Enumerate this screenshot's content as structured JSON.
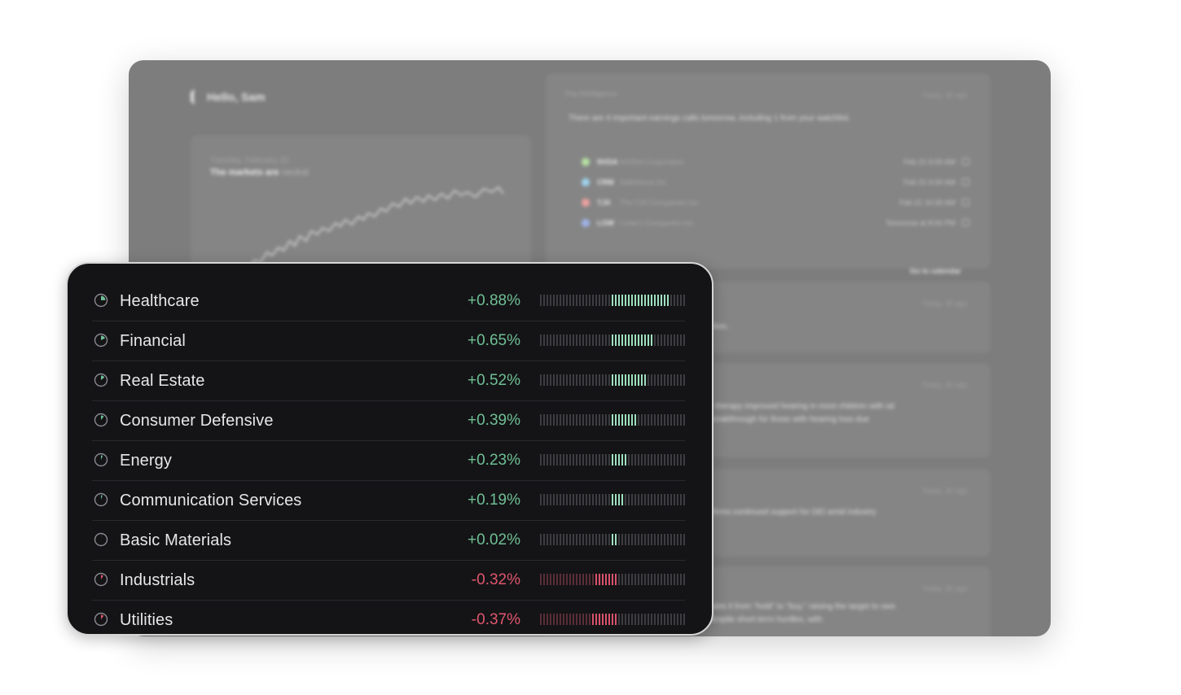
{
  "background_app": {
    "greeting": "Hello, Sam",
    "market_card": {
      "date": "Tuesday, February 20",
      "headline_prefix": "The markets are",
      "headline_state": "neutral"
    },
    "earnings_panel": {
      "pill": "Fey Intelligence",
      "timestamp": "Today, 30 ago",
      "summary": "There are 4 important earnings calls tomorrow, including 1 from your watchlist.",
      "items": [
        {
          "ticker": "NVDA",
          "name": "NVIDIA Corporation",
          "time": "Feb 21 5:00 AM",
          "color": "#b6e3a2"
        },
        {
          "ticker": "CRM",
          "name": "Salesforce Inc",
          "time": "Feb 21 5:00 AM",
          "color": "#9fd4f0"
        },
        {
          "ticker": "TJX",
          "name": "The TJX Companies Inc",
          "time": "Feb 21 10:30 AM",
          "color": "#f0a0a0"
        },
        {
          "ticker": "LOW",
          "name": "Lowe's Companies Inc",
          "time": "Tomorrow at 8:00 PM",
          "color": "#9fb4e8"
        }
      ],
      "calendar_link": "Go to calendar"
    },
    "news_snippets": [
      {
        "stamp": "Today, 30 ago",
        "text": "ntion."
      },
      {
        "stamp": "Today, 30 ago",
        "text": "e therapy improved hearing in most children with ial breakthrough for those with hearing loss due"
      },
      {
        "stamp": "Today, 30 ago",
        "text": "nfirms continued support for DEI amid industry"
      },
      {
        "stamp": "Today, 30 ago",
        "text": "ades it from \"hold\" to \"buy,\" raising the target to ows despite short-term hurdles, with"
      }
    ]
  },
  "sectors": [
    {
      "name": "Healthcare",
      "change": "+0.88%",
      "value": 0.88
    },
    {
      "name": "Financial",
      "change": "+0.65%",
      "value": 0.65
    },
    {
      "name": "Real Estate",
      "change": "+0.52%",
      "value": 0.52
    },
    {
      "name": "Consumer Defensive",
      "change": "+0.39%",
      "value": 0.39
    },
    {
      "name": "Energy",
      "change": "+0.23%",
      "value": 0.23
    },
    {
      "name": "Communication Services",
      "change": "+0.19%",
      "value": 0.19
    },
    {
      "name": "Basic Materials",
      "change": "+0.02%",
      "value": 0.02
    },
    {
      "name": "Industrials",
      "change": "-0.32%",
      "value": -0.32
    },
    {
      "name": "Utilities",
      "change": "-0.37%",
      "value": -0.37
    }
  ],
  "colors": {
    "positive": "#6fbf95",
    "negative": "#e0566e",
    "positive_tick": "#9fe0c0",
    "negative_tick": "#d9536c"
  }
}
